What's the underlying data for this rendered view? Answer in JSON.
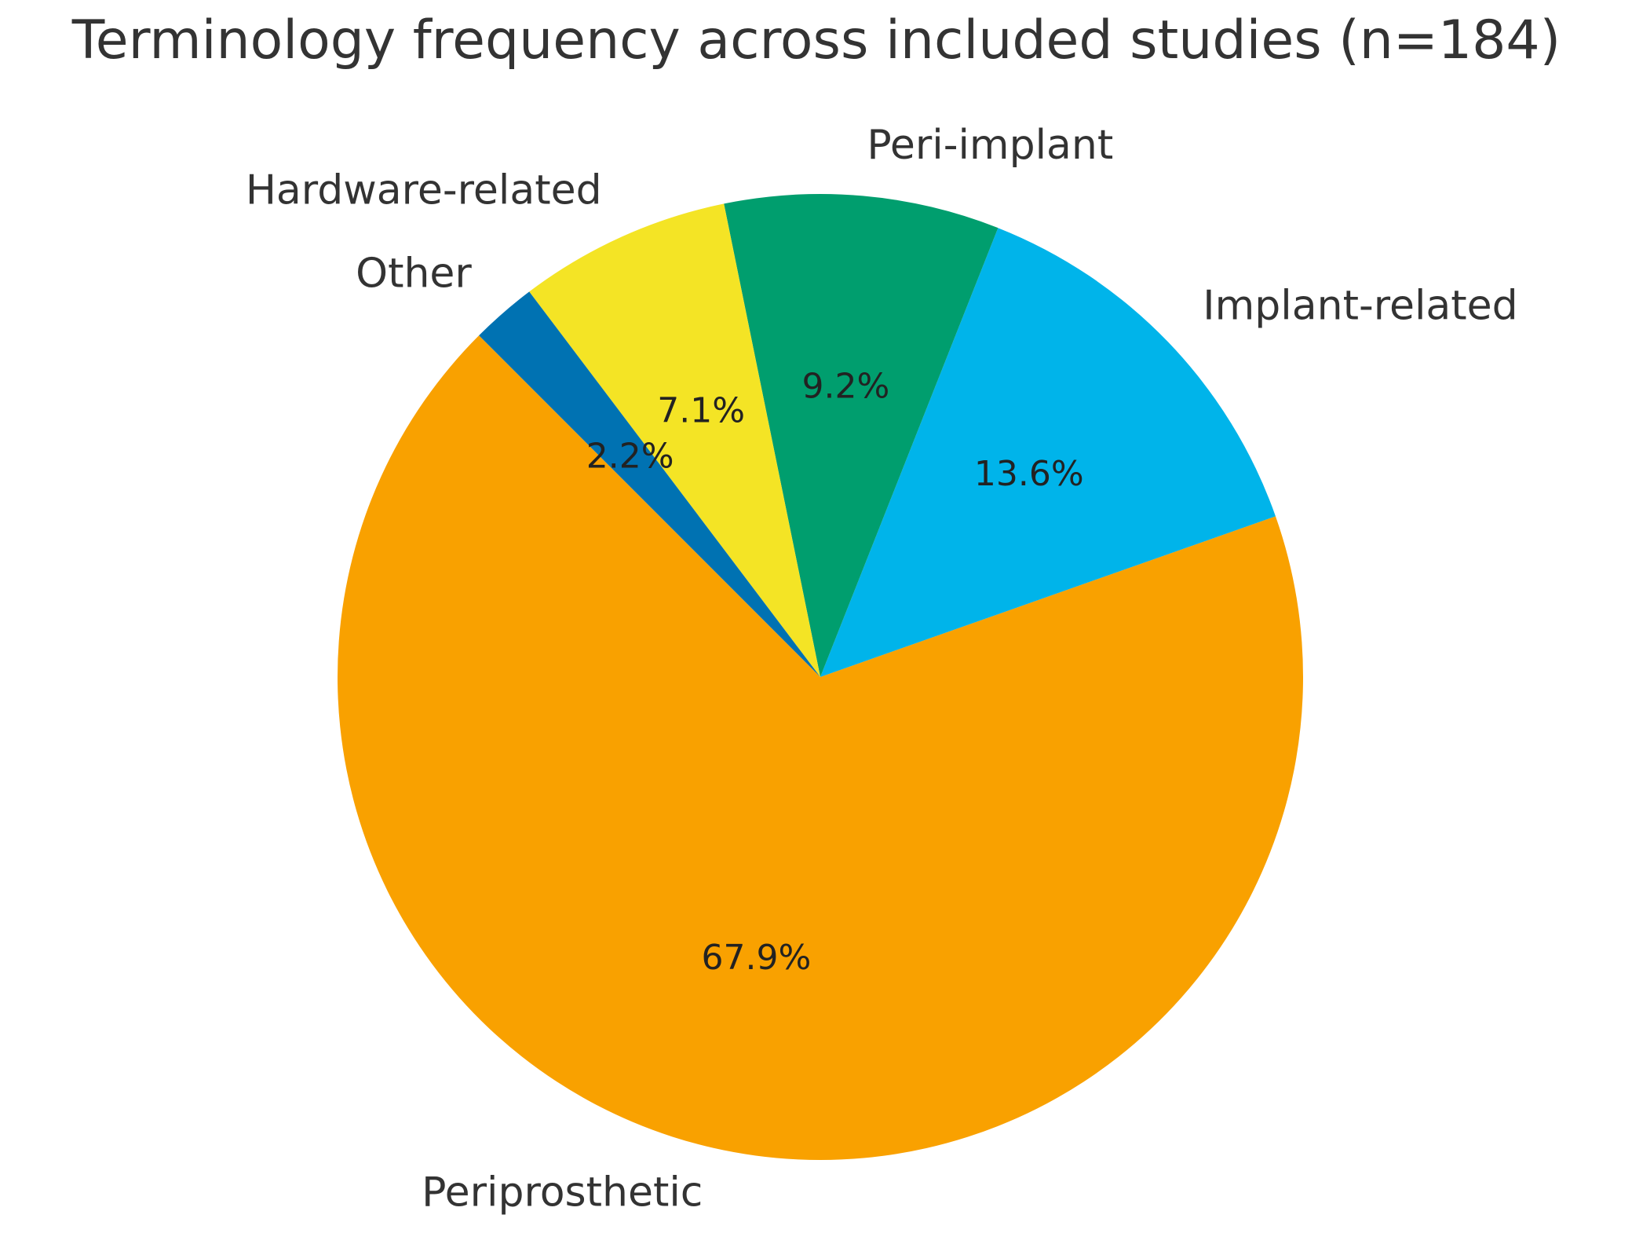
{
  "chart_data": {
    "type": "pie",
    "title": "Terminology frequency across included studies (n=184)",
    "start_angle_deg": 135,
    "direction": "counterclockwise",
    "slices": [
      {
        "label": "Periprosthetic",
        "value": 67.9,
        "pct_label": "67.9%",
        "color": "#F9A100"
      },
      {
        "label": "Implant-related",
        "value": 13.6,
        "pct_label": "13.6%",
        "color": "#00B4EA"
      },
      {
        "label": "Peri-implant",
        "value": 9.2,
        "pct_label": "9.2%",
        "color": "#009E6E"
      },
      {
        "label": "Hardware-related",
        "value": 7.1,
        "pct_label": "7.1%",
        "color": "#F4E425"
      },
      {
        "label": "Other",
        "value": 2.2,
        "pct_label": "2.2%",
        "color": "#0072B2"
      }
    ]
  }
}
